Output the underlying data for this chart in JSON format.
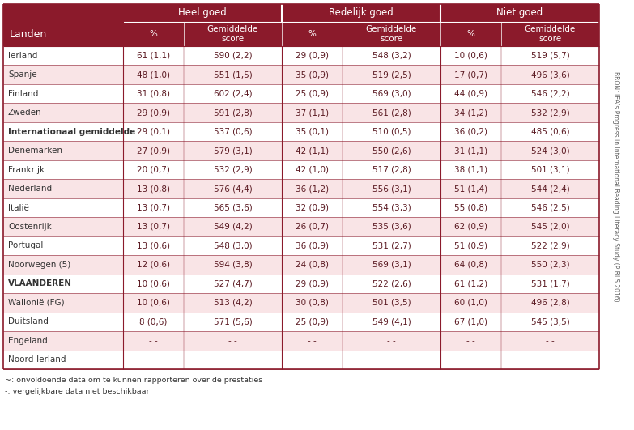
{
  "col_header_row1": [
    "Heel goed",
    "Redelijk goed",
    "Niet goed"
  ],
  "col_header_row2": [
    "%",
    "Gemiddelde\nscore",
    "%",
    "Gemiddelde\nscore",
    "%",
    "Gemiddelde\nscore"
  ],
  "landen_label": "Landen",
  "rows": [
    {
      "land": "Ierland",
      "bold": false,
      "cols": [
        "61 (1,1)",
        "590 (2,2)",
        "29 (0,9)",
        "548 (3,2)",
        "10 (0,6)",
        "519 (5,7)"
      ]
    },
    {
      "land": "Spanje",
      "bold": false,
      "cols": [
        "48 (1,0)",
        "551 (1,5)",
        "35 (0,9)",
        "519 (2,5)",
        "17 (0,7)",
        "496 (3,6)"
      ]
    },
    {
      "land": "Finland",
      "bold": false,
      "cols": [
        "31 (0,8)",
        "602 (2,4)",
        "25 (0,9)",
        "569 (3,0)",
        "44 (0,9)",
        "546 (2,2)"
      ]
    },
    {
      "land": "Zweden",
      "bold": false,
      "cols": [
        "29 (0,9)",
        "591 (2,8)",
        "37 (1,1)",
        "561 (2,8)",
        "34 (1,2)",
        "532 (2,9)"
      ]
    },
    {
      "land": "Internationaal gemiddelde",
      "bold": true,
      "cols": [
        "29 (0,1)",
        "537 (0,6)",
        "35 (0,1)",
        "510 (0,5)",
        "36 (0,2)",
        "485 (0,6)"
      ]
    },
    {
      "land": "Denemarken",
      "bold": false,
      "cols": [
        "27 (0,9)",
        "579 (3,1)",
        "42 (1,1)",
        "550 (2,6)",
        "31 (1,1)",
        "524 (3,0)"
      ]
    },
    {
      "land": "Frankrijk",
      "bold": false,
      "cols": [
        "20 (0,7)",
        "532 (2,9)",
        "42 (1,0)",
        "517 (2,8)",
        "38 (1,1)",
        "501 (3,1)"
      ]
    },
    {
      "land": "Nederland",
      "bold": false,
      "cols": [
        "13 (0,8)",
        "576 (4,4)",
        "36 (1,2)",
        "556 (3,1)",
        "51 (1,4)",
        "544 (2,4)"
      ]
    },
    {
      "land": "Italië",
      "bold": false,
      "cols": [
        "13 (0,7)",
        "565 (3,6)",
        "32 (0,9)",
        "554 (3,3)",
        "55 (0,8)",
        "546 (2,5)"
      ]
    },
    {
      "land": "Oostenrijk",
      "bold": false,
      "cols": [
        "13 (0,7)",
        "549 (4,2)",
        "26 (0,7)",
        "535 (3,6)",
        "62 (0,9)",
        "545 (2,0)"
      ]
    },
    {
      "land": "Portugal",
      "bold": false,
      "cols": [
        "13 (0,6)",
        "548 (3,0)",
        "36 (0,9)",
        "531 (2,7)",
        "51 (0,9)",
        "522 (2,9)"
      ]
    },
    {
      "land": "Noorwegen (5)",
      "bold": false,
      "cols": [
        "12 (0,6)",
        "594 (3,8)",
        "24 (0,8)",
        "569 (3,1)",
        "64 (0,8)",
        "550 (2,3)"
      ]
    },
    {
      "land": "VLAANDEREN",
      "bold": true,
      "cols": [
        "10 (0,6)",
        "527 (4,7)",
        "29 (0,9)",
        "522 (2,6)",
        "61 (1,2)",
        "531 (1,7)"
      ]
    },
    {
      "land": "Wallonië (FG)",
      "bold": false,
      "cols": [
        "10 (0,6)",
        "513 (4,2)",
        "30 (0,8)",
        "501 (3,5)",
        "60 (1,0)",
        "496 (2,8)"
      ]
    },
    {
      "land": "Duitsland",
      "bold": false,
      "cols": [
        "8 (0,6)",
        "571 (5,6)",
        "25 (0,9)",
        "549 (4,1)",
        "67 (1,0)",
        "545 (3,5)"
      ]
    },
    {
      "land": "Engeland",
      "bold": false,
      "cols": [
        "- -",
        "- -",
        "- -",
        "- -",
        "- -",
        "- -"
      ]
    },
    {
      "land": "Noord-Ierland",
      "bold": false,
      "cols": [
        "- -",
        "- -",
        "- -",
        "- -",
        "- -",
        "- -"
      ]
    }
  ],
  "footnotes": [
    "~: onvoldoende data om te kunnen rapporteren over de prestaties",
    "-: vergelijkbare data niet beschikbaar"
  ],
  "side_label": "BRON: IEA's Progress in International Reading Literacy Study (PIRLS 2016)",
  "header_bg": "#8B1A2B",
  "header_text": "#FFFFFF",
  "row_bg_white": "#FFFFFF",
  "row_bg_pink": "#F9E4E6",
  "border_color": "#8B1A2B",
  "side_label_color": "#666666",
  "footnote_color": "#333333",
  "data_text_color": "#5B1A22",
  "land_text_color": "#333333",
  "figw": 7.83,
  "figh": 5.31,
  "dpi": 100
}
